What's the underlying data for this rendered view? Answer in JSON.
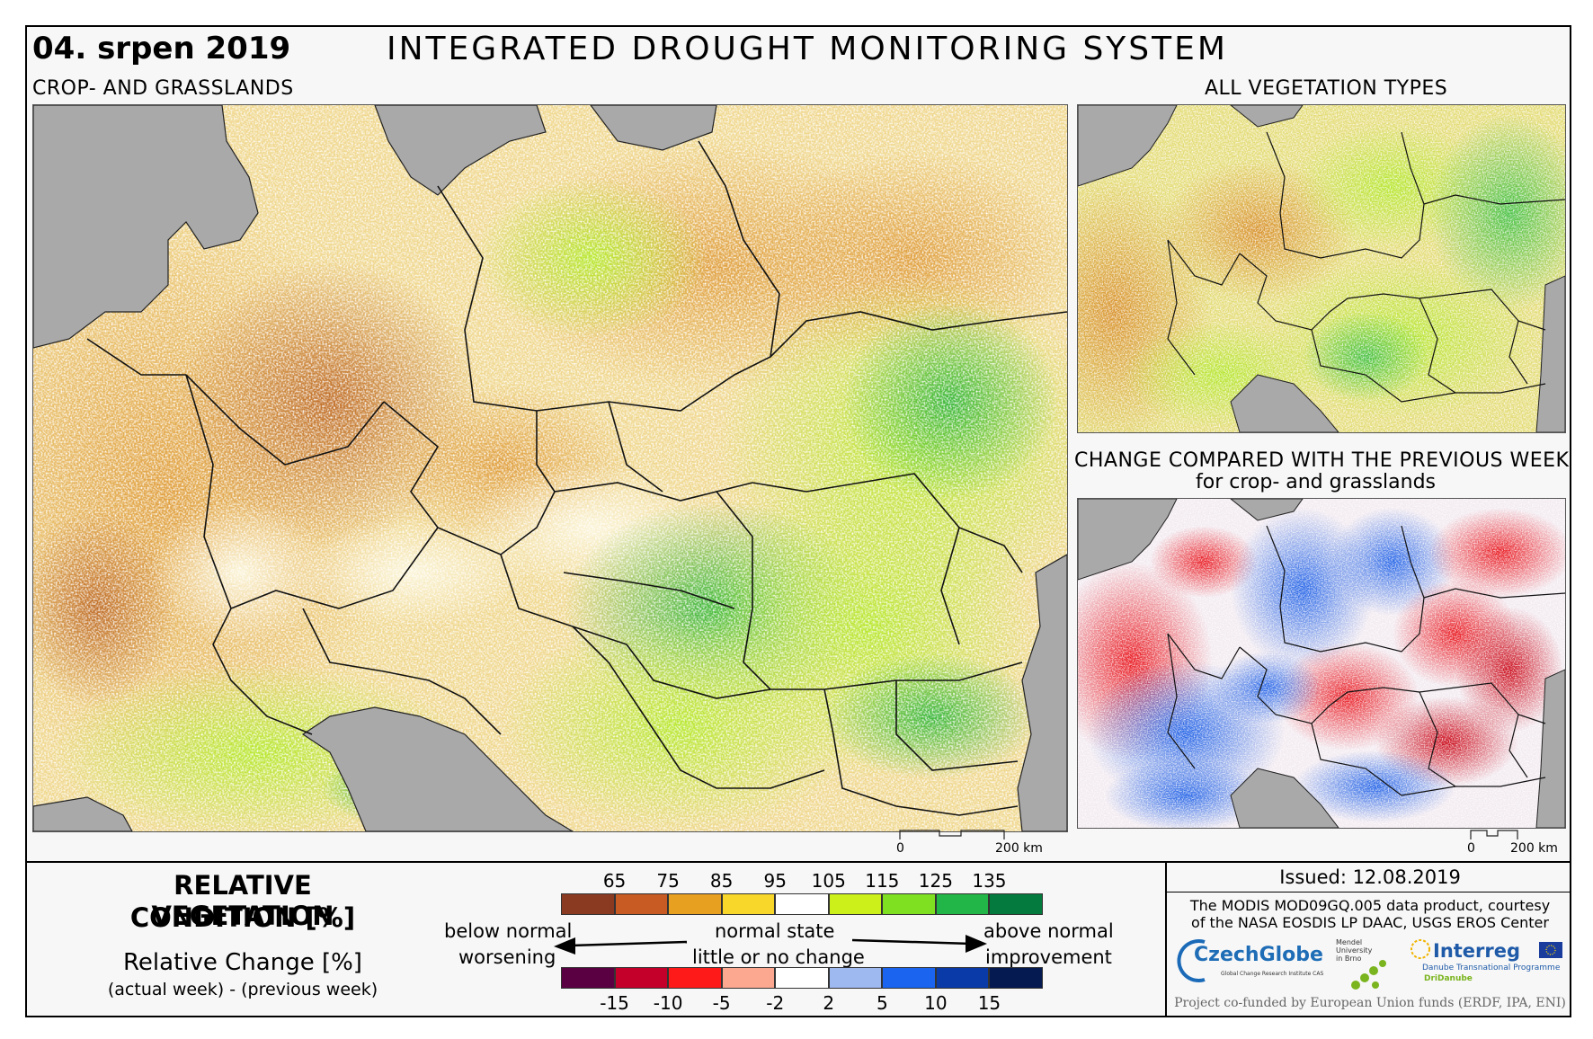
{
  "header": {
    "date": "04. srpen 2019",
    "title": "INTEGRATED DROUGHT MONITORING SYSTEM",
    "left_subtitle": "CROP- AND GRASSLANDS",
    "right_subtitle": "ALL VEGETATION TYPES",
    "change_title": "CHANGE COMPARED WITH THE PREVIOUS WEEK",
    "change_subtitle": "for crop- and grasslands"
  },
  "scale_bar": {
    "zero": "0",
    "length": "200 km"
  },
  "legend": {
    "title_line1": "RELATIVE VEGETATION",
    "title_line2": "CONDITION [%]",
    "change_title": "Relative Change [%]",
    "change_subtitle": "(actual week) - (previous week)",
    "condition_ticks": [
      "65",
      "75",
      "85",
      "95",
      "105",
      "115",
      "125",
      "135"
    ],
    "condition_colors": [
      "#8b3a22",
      "#c85a24",
      "#e8a020",
      "#f8d62a",
      "#ffffff",
      "#ccf01a",
      "#7ee020",
      "#22b648",
      "#047a3e"
    ],
    "change_ticks": [
      "-15",
      "-10",
      "-5",
      "-2",
      "2",
      "5",
      "10",
      "15"
    ],
    "change_colors": [
      "#5a0042",
      "#c4002a",
      "#ff1a1a",
      "#fca890",
      "#ffffff",
      "#9eb8f0",
      "#1a64f0",
      "#0a3aa8",
      "#061a52"
    ],
    "below_normal": "below normal",
    "worsening": "worsening",
    "normal_state": "normal state",
    "little_change": "little or no change",
    "above_normal": "above normal",
    "improvement": "improvement"
  },
  "info": {
    "issued": "Issued: 12.08.2019",
    "credit_line1": "The MODIS MOD09GQ.005 data product, courtesy",
    "credit_line2": "of the NASA EOSDIS LP DAAC, USGS EROS Center",
    "logo_czechglobe": "CzechGlobe",
    "logo_czechglobe_sub": "Global Change Research Institute CAS",
    "logo_mendel": "Mendel University in Brno",
    "logo_interreg": "Interreg",
    "logo_interreg_sub1": "Danube Transnational Programme",
    "logo_interreg_sub2": "DriDanube",
    "cofunded": "Project co-funded by European Union funds (ERDF, IPA, ENI)"
  }
}
